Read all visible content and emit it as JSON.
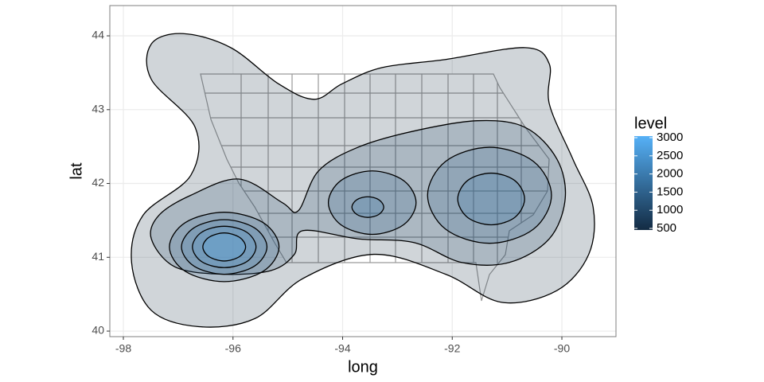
{
  "chart_data": {
    "type": "contour",
    "x_label": "long",
    "y_label": "lat",
    "xlim": [
      -98.247,
      -89.013
    ],
    "ylim": [
      39.925,
      44.41
    ],
    "xticks": [
      -98,
      -96,
      -94,
      -92,
      -90
    ],
    "yticks": [
      40,
      41,
      42,
      43,
      44
    ],
    "grid": true,
    "legend_title": "level",
    "legend_ticks": [
      500,
      1000,
      1500,
      2000,
      2500,
      3000
    ],
    "colors": {
      "low": "#132B43",
      "high": "#56B1F7"
    },
    "fill_alpha": 0.2,
    "contours": [
      {
        "level": 500,
        "lon": [
          -97.49,
          -96.91,
          -96.04,
          -95.17,
          -94.52,
          -94.01,
          -93.28,
          -92.12,
          -90.67,
          -90.23,
          -90.23,
          -89.8,
          -89.43,
          -89.51,
          -90.09,
          -91.1,
          -92.12,
          -93.43,
          -94.73,
          -95.6,
          -96.62,
          -97.49,
          -97.85,
          -97.64,
          -96.77,
          -96.69,
          -97.49
        ],
        "lat": [
          43.89,
          44.03,
          43.84,
          43.35,
          43.14,
          43.35,
          43.57,
          43.68,
          43.84,
          43.62,
          43.08,
          42.33,
          41.68,
          41.04,
          40.55,
          40.39,
          40.77,
          41.04,
          40.71,
          40.17,
          40.06,
          40.28,
          40.93,
          41.57,
          42.11,
          42.76,
          43.41
        ]
      },
      {
        "level": 1000,
        "lon": [
          -96.77,
          -95.89,
          -95.1,
          -94.81,
          -94.44,
          -93.72,
          -92.7,
          -91.54,
          -90.67,
          -90.09,
          -89.94,
          -90.23,
          -90.96,
          -91.83,
          -92.7,
          -93.72,
          -94.73,
          -94.88,
          -95.31,
          -96.19,
          -97.06,
          -97.49,
          -97.35
        ],
        "lat": [
          41.84,
          42.06,
          41.74,
          41.63,
          42.17,
          42.49,
          42.71,
          42.85,
          42.76,
          42.33,
          41.79,
          41.25,
          40.93,
          40.93,
          41.2,
          41.25,
          41.36,
          41.04,
          40.82,
          40.77,
          40.87,
          41.25,
          41.57
        ]
      },
      {
        "level": 1500,
        "lon": [
          -95.16,
          -95.45,
          -96.16,
          -96.87,
          -97.16,
          -96.87,
          -96.16,
          -95.45
        ],
        "lat": [
          41.14,
          41.47,
          41.61,
          41.47,
          41.14,
          40.81,
          40.67,
          40.81
        ]
      },
      {
        "level": 2000,
        "lon": [
          -95.38,
          -95.61,
          -96.16,
          -96.71,
          -96.94,
          -96.71,
          -96.16,
          -95.61
        ],
        "lat": [
          41.14,
          41.4,
          41.51,
          41.4,
          41.14,
          40.88,
          40.77,
          40.88
        ]
      },
      {
        "level": 2500,
        "lon": [
          -95.58,
          -95.75,
          -96.16,
          -96.57,
          -96.74,
          -96.57,
          -96.16,
          -95.75
        ],
        "lat": [
          41.14,
          41.34,
          41.42,
          41.34,
          41.14,
          40.94,
          40.86,
          40.94
        ]
      },
      {
        "level": 3000,
        "lon": [
          -95.77,
          -95.88,
          -96.16,
          -96.44,
          -96.55,
          -96.44,
          -96.16,
          -95.88
        ],
        "lat": [
          41.14,
          41.27,
          41.33,
          41.27,
          41.14,
          41.01,
          40.95,
          41.01
        ]
      },
      {
        "level": 1500,
        "lon": [
          -92.66,
          -92.89,
          -93.46,
          -94.03,
          -94.26,
          -94.03,
          -93.46,
          -92.89
        ],
        "lat": [
          41.74,
          42.04,
          42.17,
          42.04,
          41.74,
          41.44,
          41.31,
          41.44
        ]
      },
      {
        "level": 2000,
        "lon": [
          -93.25,
          -93.34,
          -93.54,
          -93.74,
          -93.83,
          -93.74,
          -93.54,
          -93.34
        ],
        "lat": [
          41.68,
          41.78,
          41.82,
          41.78,
          41.68,
          41.58,
          41.54,
          41.58
        ]
      },
      {
        "level": 1500,
        "lon": [
          -90.19,
          -90.52,
          -91.32,
          -92.12,
          -92.45,
          -92.12,
          -91.32,
          -90.52
        ],
        "lat": [
          41.84,
          42.3,
          42.49,
          42.3,
          41.84,
          41.38,
          41.19,
          41.38
        ]
      },
      {
        "level": 2000,
        "lon": [
          -90.68,
          -90.86,
          -91.29,
          -91.72,
          -91.9,
          -91.72,
          -91.29,
          -90.86
        ],
        "lat": [
          41.79,
          42.04,
          42.14,
          42.04,
          41.79,
          41.54,
          41.44,
          41.54
        ]
      }
    ]
  }
}
